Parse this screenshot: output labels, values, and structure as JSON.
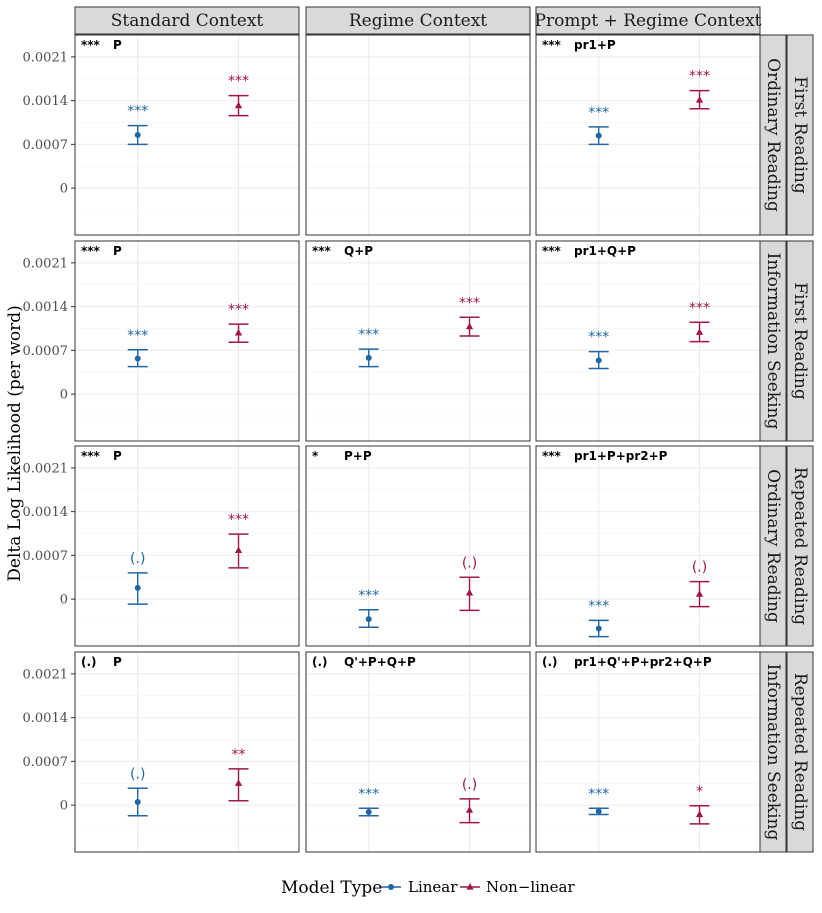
{
  "chart_data": {
    "type": "errorbar",
    "ylabel": "Delta Log Likelihood (per word)",
    "ylim": [
      -0.00075,
      0.00245
    ],
    "yticks": [
      0,
      0.0007,
      0.0014,
      0.0021
    ],
    "ytick_labels": [
      "0",
      "0.0007",
      "0.0014",
      "0.0021"
    ],
    "columns": [
      "Standard Context",
      "Regime Context",
      "Prompt + Regime Context"
    ],
    "rows": [
      {
        "reading": "First Reading",
        "regime": "Ordinary Reading"
      },
      {
        "reading": "First Reading",
        "regime": "Information Seeking"
      },
      {
        "reading": "Repeated Reading",
        "regime": "Ordinary Reading"
      },
      {
        "reading": "Repeated Reading",
        "regime": "Information Seeking"
      }
    ],
    "colors": {
      "linear": "#1f66a6",
      "nonlinear": "#a0154a"
    },
    "legend": {
      "title": "Model Type",
      "items": [
        {
          "key": "linear",
          "label": "Linear"
        },
        {
          "key": "nonlinear",
          "label": "Non−linear"
        }
      ]
    },
    "panels": [
      {
        "row": 0,
        "col": 0,
        "empty": false,
        "sig": "***",
        "formula": "P",
        "points": [
          {
            "model": "linear",
            "y": 0.00085,
            "lo": 0.0007,
            "hi": 0.001,
            "sig": "***"
          },
          {
            "model": "nonlinear",
            "y": 0.00132,
            "lo": 0.00116,
            "hi": 0.00148,
            "sig": "***"
          }
        ]
      },
      {
        "row": 0,
        "col": 1,
        "empty": true,
        "sig": "",
        "formula": "",
        "points": []
      },
      {
        "row": 0,
        "col": 2,
        "empty": false,
        "sig": "***",
        "formula": "pr1+P",
        "points": [
          {
            "model": "linear",
            "y": 0.00084,
            "lo": 0.0007,
            "hi": 0.00098,
            "sig": "***"
          },
          {
            "model": "nonlinear",
            "y": 0.00141,
            "lo": 0.00127,
            "hi": 0.00156,
            "sig": "***"
          }
        ]
      },
      {
        "row": 1,
        "col": 0,
        "empty": false,
        "sig": "***",
        "formula": "P",
        "points": [
          {
            "model": "linear",
            "y": 0.00057,
            "lo": 0.00044,
            "hi": 0.00071,
            "sig": "***"
          },
          {
            "model": "nonlinear",
            "y": 0.00098,
            "lo": 0.00083,
            "hi": 0.00112,
            "sig": "***"
          }
        ]
      },
      {
        "row": 1,
        "col": 1,
        "empty": false,
        "sig": "***",
        "formula": "Q+P",
        "points": [
          {
            "model": "linear",
            "y": 0.00058,
            "lo": 0.00044,
            "hi": 0.00072,
            "sig": "***"
          },
          {
            "model": "nonlinear",
            "y": 0.00108,
            "lo": 0.00093,
            "hi": 0.00123,
            "sig": "***"
          }
        ]
      },
      {
        "row": 1,
        "col": 2,
        "empty": false,
        "sig": "***",
        "formula": "pr1+Q+P",
        "points": [
          {
            "model": "linear",
            "y": 0.00054,
            "lo": 0.00041,
            "hi": 0.00068,
            "sig": "***"
          },
          {
            "model": "nonlinear",
            "y": 0.00099,
            "lo": 0.00084,
            "hi": 0.00115,
            "sig": "***"
          }
        ]
      },
      {
        "row": 2,
        "col": 0,
        "empty": false,
        "sig": "***",
        "formula": "P",
        "points": [
          {
            "model": "linear",
            "y": 0.00018,
            "lo": -8e-05,
            "hi": 0.00042,
            "sig": "(.)"
          },
          {
            "model": "nonlinear",
            "y": 0.00078,
            "lo": 0.0005,
            "hi": 0.00104,
            "sig": "***"
          }
        ]
      },
      {
        "row": 2,
        "col": 1,
        "empty": false,
        "sig": "*",
        "formula": "P+P",
        "points": [
          {
            "model": "linear",
            "y": -0.00032,
            "lo": -0.00045,
            "hi": -0.00017,
            "sig": "***"
          },
          {
            "model": "nonlinear",
            "y": 0.0001,
            "lo": -0.00018,
            "hi": 0.00035,
            "sig": "(.)"
          }
        ]
      },
      {
        "row": 2,
        "col": 2,
        "empty": false,
        "sig": "***",
        "formula": "pr1+P+pr2+P",
        "points": [
          {
            "model": "linear",
            "y": -0.00047,
            "lo": -0.0006,
            "hi": -0.00034,
            "sig": "***"
          },
          {
            "model": "nonlinear",
            "y": 8e-05,
            "lo": -0.00012,
            "hi": 0.00028,
            "sig": "(.)"
          }
        ]
      },
      {
        "row": 3,
        "col": 0,
        "empty": false,
        "sig": "(.)",
        "formula": "P",
        "points": [
          {
            "model": "linear",
            "y": 5e-05,
            "lo": -0.00017,
            "hi": 0.00027,
            "sig": "(.)"
          },
          {
            "model": "nonlinear",
            "y": 0.00035,
            "lo": 7e-05,
            "hi": 0.00058,
            "sig": "**"
          }
        ]
      },
      {
        "row": 3,
        "col": 1,
        "empty": false,
        "sig": "(.)",
        "formula": "Q'+P+Q+P",
        "points": [
          {
            "model": "linear",
            "y": -0.00011,
            "lo": -0.00017,
            "hi": -5e-05,
            "sig": "***"
          },
          {
            "model": "nonlinear",
            "y": -8e-05,
            "lo": -0.00028,
            "hi": 0.0001,
            "sig": "(.)"
          }
        ]
      },
      {
        "row": 3,
        "col": 2,
        "empty": false,
        "sig": "(.)",
        "formula": "pr1+Q'+P+pr2+Q+P",
        "points": [
          {
            "model": "linear",
            "y": -0.0001,
            "lo": -0.00015,
            "hi": -5e-05,
            "sig": "***"
          },
          {
            "model": "nonlinear",
            "y": -0.00015,
            "lo": -0.0003,
            "hi": -1e-05,
            "sig": "*"
          }
        ]
      }
    ]
  }
}
